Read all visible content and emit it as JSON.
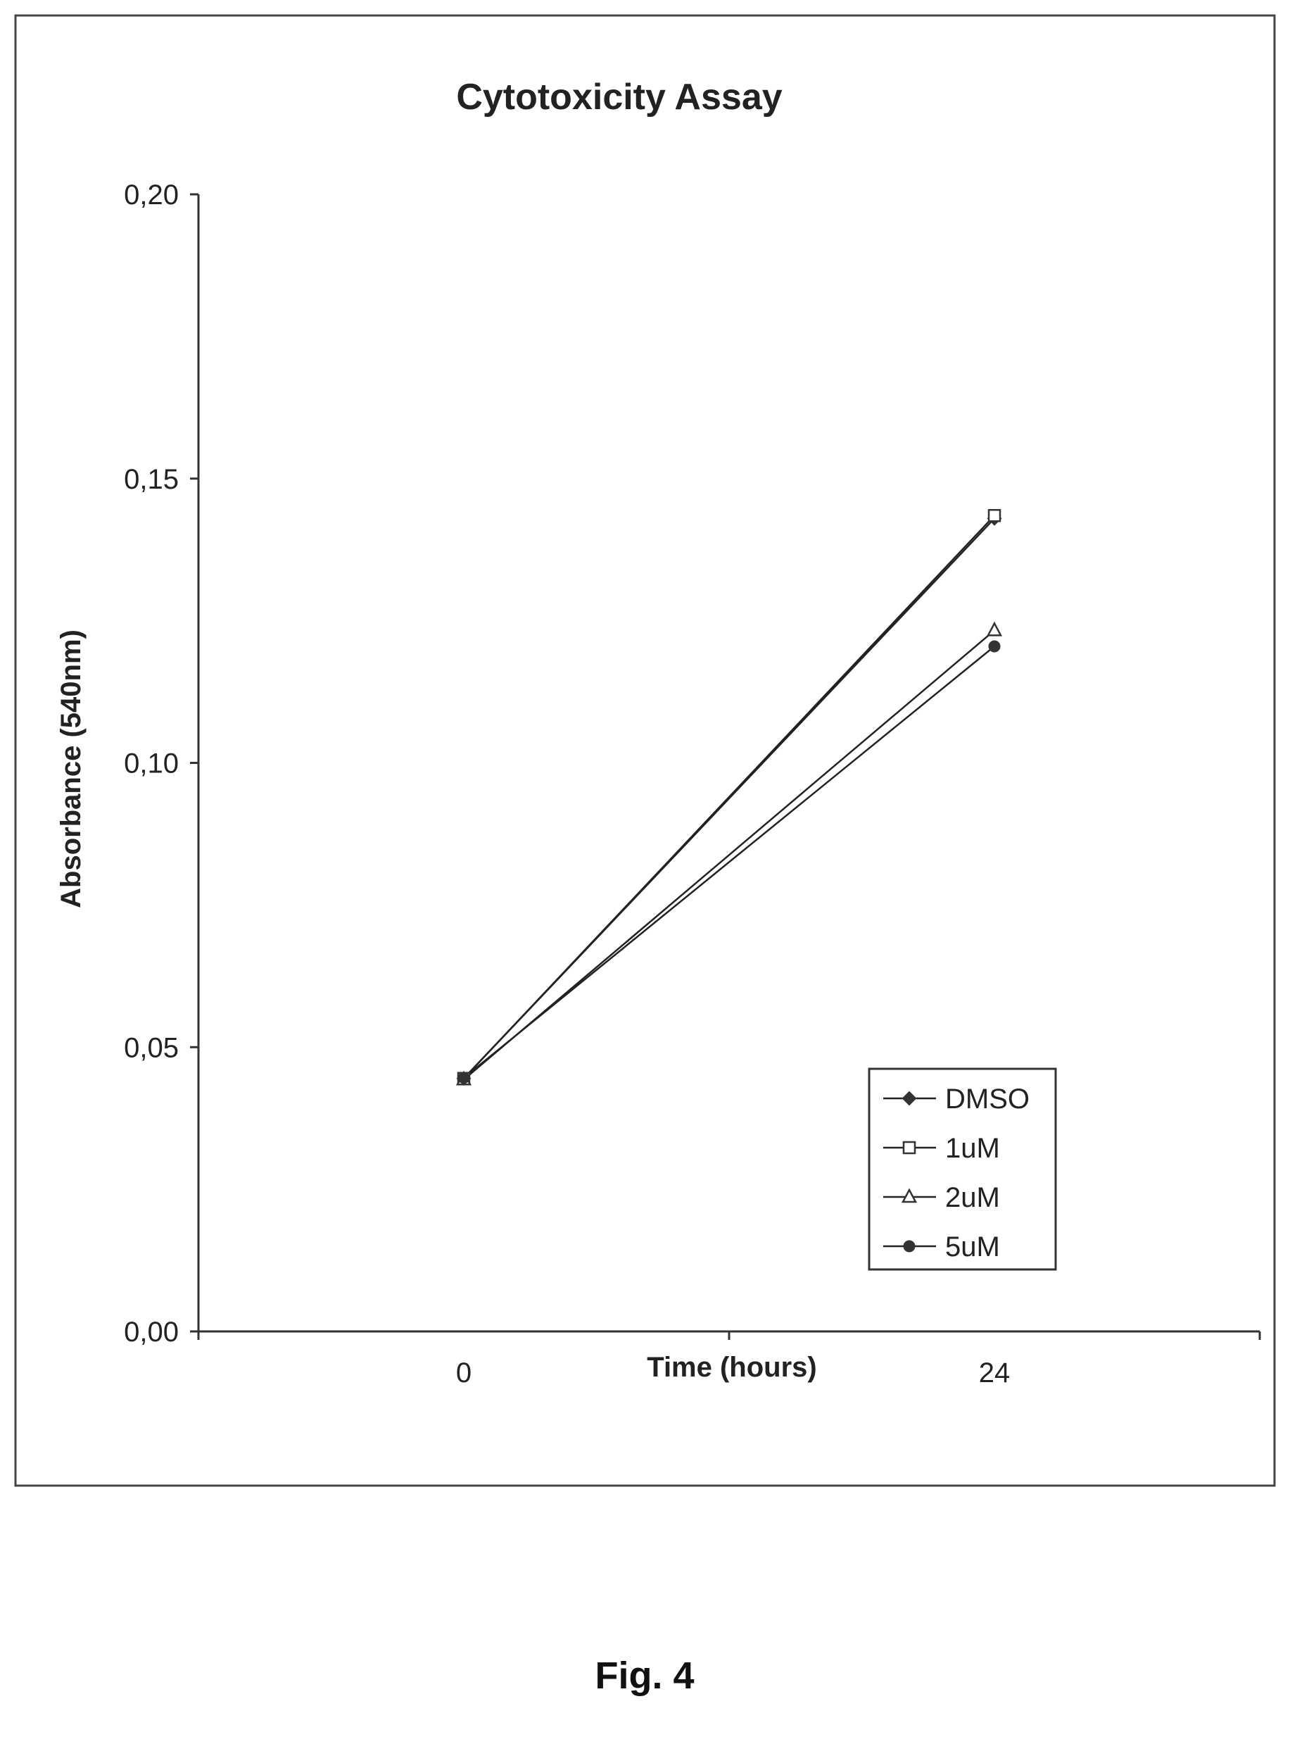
{
  "figure_label": "Fig. 4",
  "chart_data": {
    "type": "line",
    "title": "Cytotoxicity Assay",
    "xlabel": "Time (hours)",
    "ylabel": "Absorbance (540nm)",
    "categories": [
      "0",
      "24"
    ],
    "ylim": [
      0,
      0.2
    ],
    "yticks": [
      "0,00",
      "0,05",
      "0,10",
      "0,15",
      "0,20"
    ],
    "ytick_values": [
      0,
      0.05,
      0.1,
      0.15,
      0.2
    ],
    "grid": false,
    "legend_position": "bottom-right",
    "series": [
      {
        "name": "DMSO",
        "marker": "diamond-filled",
        "values": [
          0.0445,
          0.143
        ]
      },
      {
        "name": "1uM",
        "marker": "square-open",
        "values": [
          0.0445,
          0.1435
        ]
      },
      {
        "name": "2uM",
        "marker": "triangle-open",
        "values": [
          0.0443,
          0.1233
        ]
      },
      {
        "name": "5uM",
        "marker": "circle-filled",
        "values": [
          0.0446,
          0.1205
        ]
      }
    ]
  }
}
